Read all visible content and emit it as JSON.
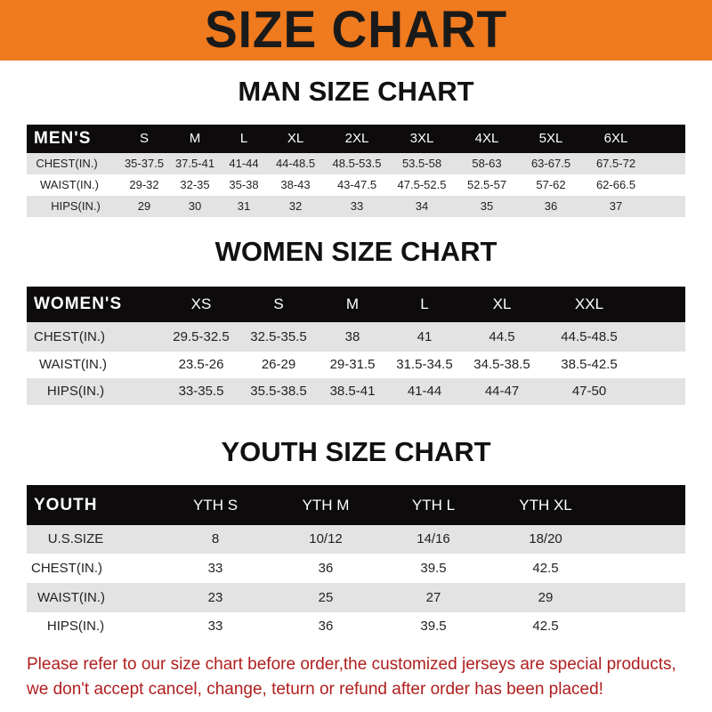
{
  "banner": {
    "title": "SIZE CHART",
    "color": "#f07a1e"
  },
  "note_color": "#b01e1e",
  "tables": [
    {
      "title": "MAN SIZE CHART",
      "header": [
        "MEN'S",
        "S",
        "M",
        "L",
        "XL",
        "2XL",
        "3XL",
        "4XL",
        "5XL",
        "6XL"
      ],
      "rows": [
        [
          "CHEST(IN.)",
          "35-37.5",
          "37.5-41",
          "41-44",
          "44-48.5",
          "48.5-53.5",
          "53.5-58",
          "58-63",
          "63-67.5",
          "67.5-72"
        ],
        [
          "WAIST(IN.)",
          "29-32",
          "32-35",
          "35-38",
          "38-43",
          "43-47.5",
          "47.5-52.5",
          "52.5-57",
          "57-62",
          "62-66.5"
        ],
        [
          "HIPS(IN.)",
          "29",
          "30",
          "31",
          "32",
          "33",
          "34",
          "35",
          "36",
          "37"
        ]
      ]
    },
    {
      "title": "WOMEN SIZE CHART",
      "header": [
        "WOMEN'S",
        "XS",
        "S",
        "M",
        "L",
        "XL",
        "XXL"
      ],
      "rows": [
        [
          "CHEST(IN.)",
          "29.5-32.5",
          "32.5-35.5",
          "38",
          "41",
          "44.5",
          "44.5-48.5"
        ],
        [
          "WAIST(IN.)",
          "23.5-26",
          "26-29",
          "29-31.5",
          "31.5-34.5",
          "34.5-38.5",
          "38.5-42.5"
        ],
        [
          "HIPS(IN.)",
          "33-35.5",
          "35.5-38.5",
          "38.5-41",
          "41-44",
          "44-47",
          "47-50"
        ]
      ]
    },
    {
      "title": "YOUTH SIZE CHART",
      "header": [
        "YOUTH",
        "YTH S",
        "YTH M",
        "YTH L",
        "YTH XL"
      ],
      "rows": [
        [
          "U.S.SIZE",
          "8",
          "10/12",
          "14/16",
          "18/20"
        ],
        [
          "CHEST(IN.)",
          "33",
          "36",
          "39.5",
          "42.5"
        ],
        [
          "WAIST(IN.)",
          "23",
          "25",
          "27",
          "29"
        ],
        [
          "HIPS(IN.)",
          "33",
          "36",
          "39.5",
          "42.5"
        ]
      ]
    }
  ],
  "note": [
    "Please refer to our size chart before order,the customized jerseys are special products,",
    "we don't accept cancel, change, teturn or refund after order has been placed!"
  ]
}
